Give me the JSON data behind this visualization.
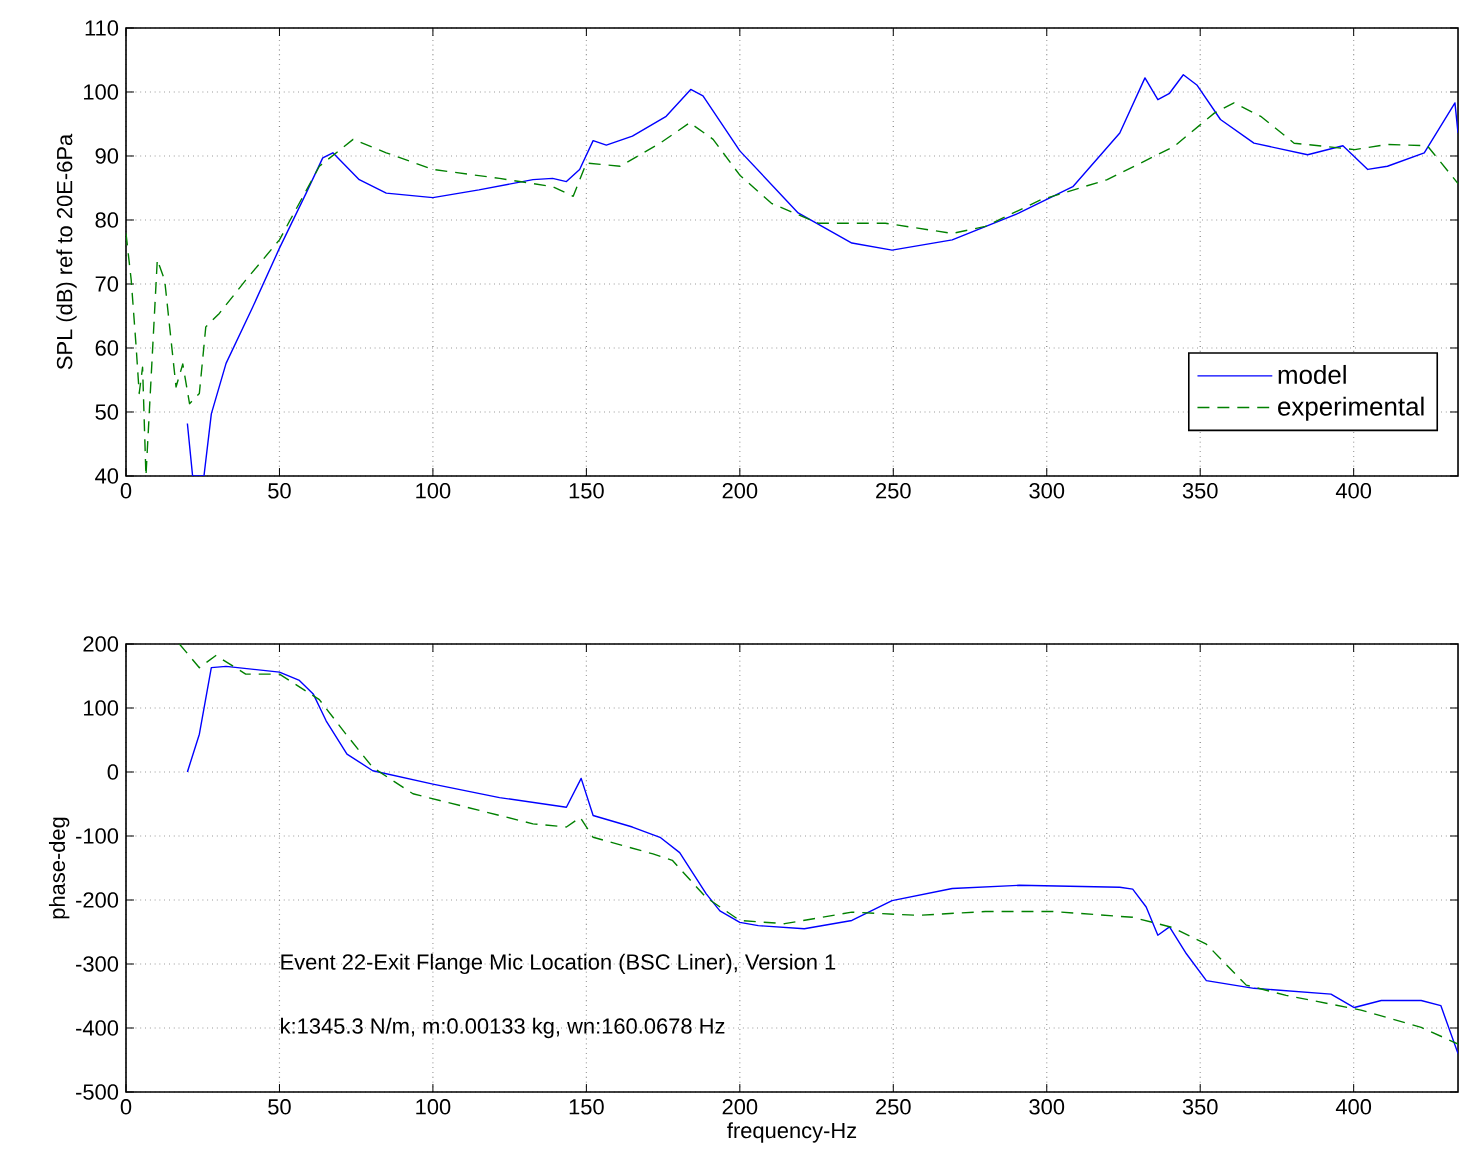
{
  "chart_data": [
    {
      "type": "line",
      "ylabel": "SPL (dB) ref to 20E-6Pa",
      "xlim": [
        0,
        434
      ],
      "ylim": [
        40,
        110
      ],
      "xticks": [
        0,
        50,
        100,
        150,
        200,
        250,
        300,
        350,
        400
      ],
      "yticks": [
        40,
        50,
        60,
        70,
        80,
        90,
        100,
        110
      ],
      "grid": true,
      "legend": "bottom right",
      "series": [
        {
          "name": "model",
          "color": "#0000ff",
          "line_style": "solid",
          "x": [
            20,
            21.7,
            25.4,
            27.8,
            32.6,
            41.3,
            50,
            58.7,
            64.1,
            67.4,
            76,
            84.8,
            100,
            115,
            132.6,
            139,
            143.5,
            147.8,
            152.2,
            156.5,
            165,
            176,
            184,
            188,
            200,
            219,
            236.5,
            249.6,
            269.2,
            291,
            308.5,
            323.8,
            332,
            336.2,
            340,
            344.5,
            348.9,
            356.6,
            367.5,
            385,
            396.5,
            404.6,
            411,
            423,
            433,
            434
          ],
          "values": [
            48.2,
            40,
            40,
            49.7,
            57.6,
            66.4,
            75.6,
            84.2,
            89.7,
            90.5,
            86.3,
            84.2,
            83.5,
            84.7,
            86.3,
            86.5,
            86,
            87.9,
            92.4,
            91.7,
            93.1,
            96.2,
            100.4,
            99.4,
            90.8,
            81.1,
            76.4,
            75.3,
            76.9,
            81.1,
            85.2,
            93.6,
            102.2,
            98.8,
            99.8,
            102.7,
            101.1,
            95.7,
            92,
            90.2,
            91.6,
            87.9,
            88.4,
            90.5,
            98.3,
            93.6
          ]
        },
        {
          "name": "experimental",
          "color": "#008000",
          "line_style": "dashed",
          "x": [
            0,
            1.7,
            3.3,
            4.3,
            5.4,
            6.5,
            10.2,
            12.6,
            16.3,
            18.5,
            20.7,
            23.9,
            26,
            30.4,
            39,
            50,
            63,
            74,
            84.8,
            100,
            121.7,
            139,
            145.7,
            150,
            161,
            174,
            183.7,
            191.3,
            200,
            210.3,
            225.6,
            247.4,
            269.2,
            280,
            297.8,
            319.7,
            341.5,
            354.6,
            361,
            369.7,
            380.6,
            400.4,
            411,
            424,
            434
          ],
          "values": [
            77.9,
            70.6,
            60.2,
            52.9,
            57,
            40,
            73.8,
            70.6,
            53.9,
            57.5,
            51.3,
            52.9,
            63.3,
            65.4,
            70.6,
            76.9,
            88.4,
            92.6,
            90.5,
            87.9,
            86.5,
            85.2,
            83.7,
            88.9,
            88.4,
            92,
            95.2,
            92.6,
            87,
            82.6,
            79.5,
            79.5,
            77.9,
            79,
            83.1,
            86.3,
            91.5,
            96.7,
            98.3,
            96.2,
            92,
            91,
            91.8,
            91.6,
            85.7
          ]
        }
      ]
    },
    {
      "type": "line",
      "xlabel": "frequency-Hz",
      "ylabel": "phase-deg",
      "xlim": [
        0,
        434
      ],
      "ylim": [
        -500,
        200
      ],
      "xticks": [
        0,
        50,
        100,
        150,
        200,
        250,
        300,
        350,
        400
      ],
      "yticks": [
        -500,
        -400,
        -300,
        -200,
        -100,
        0,
        100,
        200
      ],
      "grid": true,
      "annotations": [
        "Event 22-Exit Flange Mic Location (BSC Liner), Version 1",
        "k:1345.3 N/m, m:0.00133 kg, wn:160.0678 Hz"
      ],
      "series": [
        {
          "color": "#0000ff",
          "line_style": "solid",
          "x": [
            20,
            23.9,
            27.8,
            32.6,
            50,
            56.5,
            61,
            65.2,
            72,
            80.4,
            100,
            121.7,
            143.5,
            148.3,
            152.2,
            165,
            174,
            180.4,
            189,
            193.5,
            200,
            206,
            221,
            236.5,
            249.6,
            269.2,
            291,
            323.8,
            328,
            332.4,
            336.2,
            340,
            345.5,
            352,
            367.5,
            392.6,
            400.2,
            409,
            422,
            428.4,
            434
          ],
          "values": [
            0,
            59,
            163,
            165,
            156,
            143,
            122,
            80,
            28,
            2,
            -19,
            -40,
            -55,
            -10,
            -68,
            -86,
            -102,
            -126,
            -190,
            -217,
            -235,
            -240,
            -245,
            -232,
            -201,
            -182,
            -177,
            -180,
            -183,
            -211,
            -255,
            -242,
            -284,
            -326,
            -338,
            -347,
            -368,
            -357,
            -357,
            -365,
            -440
          ]
        },
        {
          "color": "#008000",
          "line_style": "dashed",
          "x": [
            17.4,
            23.9,
            29.3,
            39,
            50,
            63,
            71.7,
            80.4,
            93.5,
            111,
            132.6,
            143.5,
            148,
            152.2,
            171.7,
            178,
            189,
            200,
            214.6,
            236.5,
            258,
            280,
            302,
            328,
            341,
            352,
            365,
            378,
            402.4,
            422,
            434
          ],
          "values": [
            200,
            163,
            182,
            153,
            153,
            113,
            59,
            7,
            -34,
            -55,
            -81,
            -86,
            -71,
            -102,
            -128,
            -138,
            -196,
            -232,
            -237,
            -219,
            -224,
            -218,
            -218,
            -227,
            -243,
            -269,
            -333,
            -349,
            -372,
            -399,
            -425
          ]
        }
      ]
    }
  ]
}
